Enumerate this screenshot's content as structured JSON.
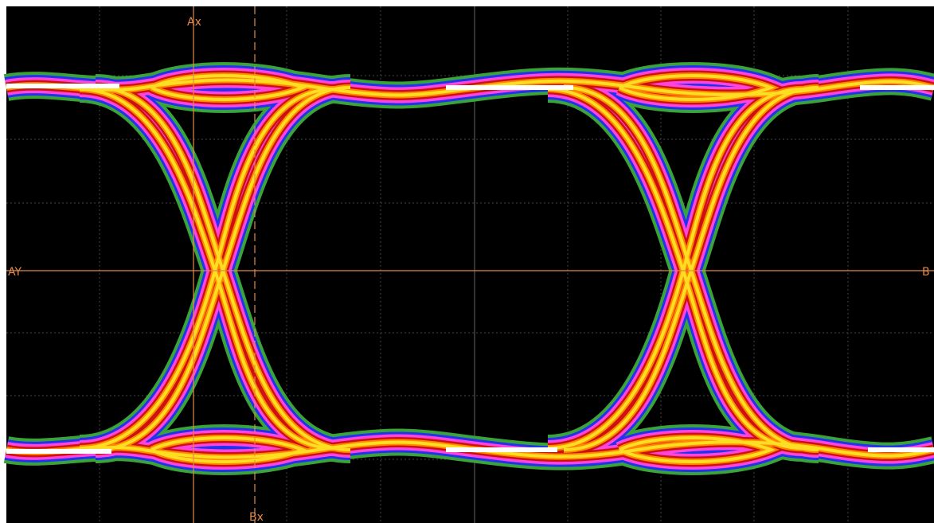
{
  "cursors": {
    "ax": "Ax",
    "ay": "AY",
    "bx": "Bx",
    "by": "B"
  }
}
